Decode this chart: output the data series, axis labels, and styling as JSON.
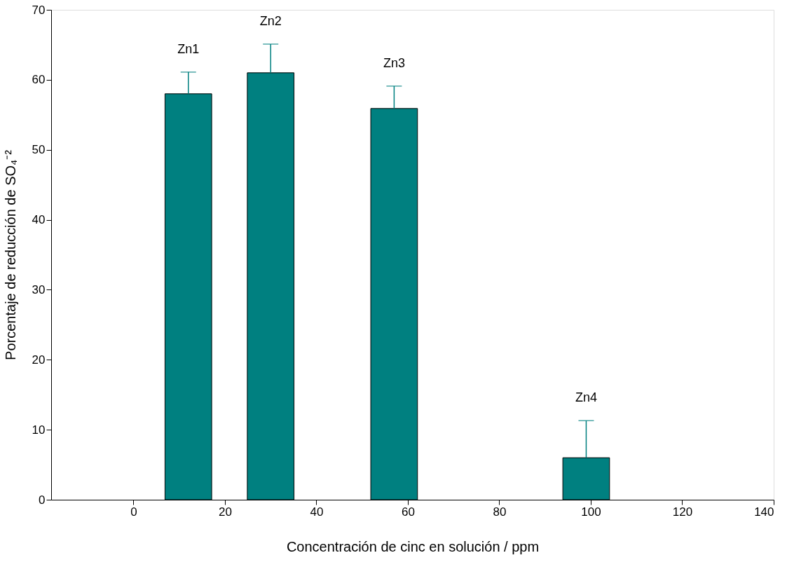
{
  "chart_data": {
    "type": "bar",
    "xlabel": "Concentración de cinc en solución / ppm",
    "ylabel": "Porcentaje de reducción de SO₄⁻²",
    "x": [
      12,
      30,
      57,
      99
    ],
    "series": [
      {
        "color": "#008080",
        "values": [
          58.0,
          61.0,
          55.9,
          6.0
        ],
        "errors": [
          [
            58.0,
            61.1
          ],
          [
            61.0,
            65.1
          ],
          [
            55.9,
            59.1
          ],
          [
            6.0,
            11.3
          ]
        ]
      }
    ],
    "xlim": [
      -18,
      140
    ],
    "xticks": [
      0,
      20,
      40,
      60,
      80,
      100,
      120,
      140
    ],
    "ylim": [
      0,
      70
    ],
    "yticks": [
      0,
      10,
      20,
      30,
      40,
      50,
      60,
      70
    ],
    "grid": false,
    "annotations": [
      "Zn1",
      "Zn2",
      "Zn3",
      "Zn4"
    ]
  }
}
